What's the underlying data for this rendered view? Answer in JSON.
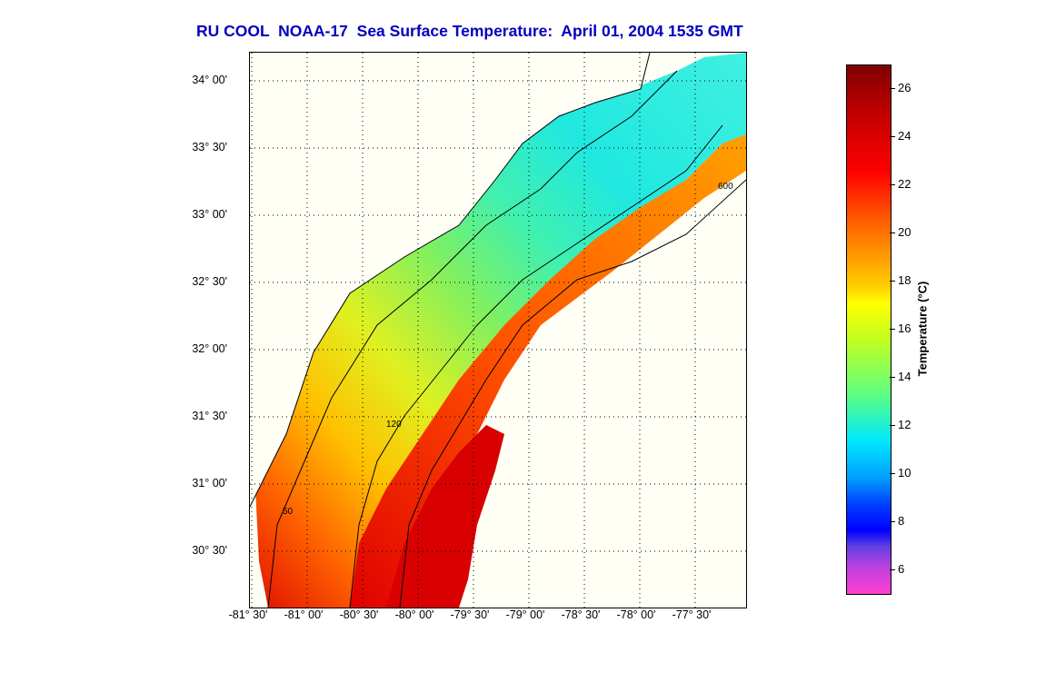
{
  "title": "RU COOL  NOAA-17  Sea Surface Temperature:  April 01, 2004 1535 GMT",
  "map": {
    "lat_labels": [
      "34° 00'",
      "33° 30'",
      "33° 00'",
      "32° 30'",
      "32° 00'",
      "31° 30'",
      "31° 00'",
      "30° 30'"
    ],
    "lon_labels": [
      "-81° 30'",
      "-81° 00'",
      "-80° 30'",
      "-80° 00'",
      "-79° 30'",
      "-79° 00'",
      "-78° 30'",
      "-78° 00'",
      "-77° 30'"
    ],
    "isobath_labels": [
      "50",
      "120",
      "600"
    ],
    "grid": true
  },
  "colorbar": {
    "label": "Temperature (°C)",
    "ticks": [
      "26",
      "24",
      "22",
      "20",
      "18",
      "16",
      "14",
      "12",
      "10",
      "8",
      "6"
    ]
  }
}
